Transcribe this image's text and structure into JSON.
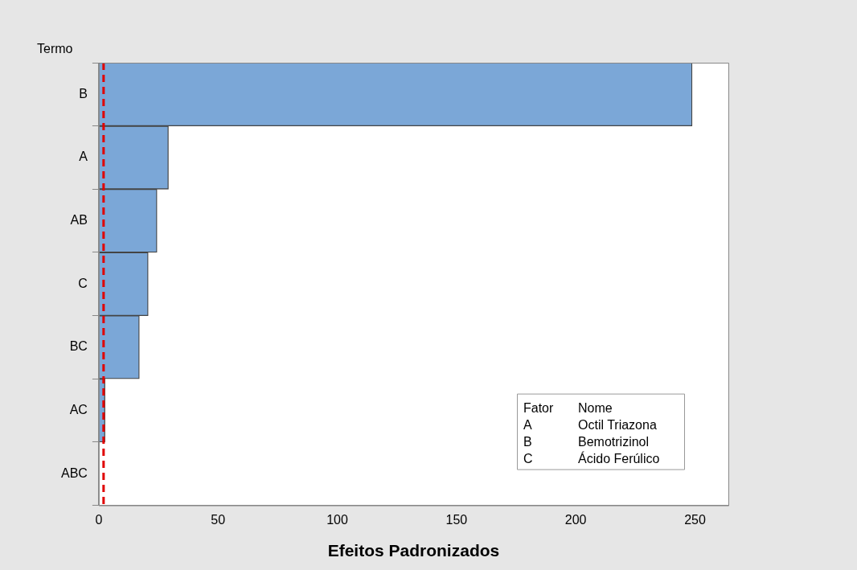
{
  "chart_data": {
    "type": "bar",
    "orientation": "horizontal",
    "xlabel": "Efeitos Padronizados",
    "ylabel": "Termo",
    "categories": [
      "B",
      "A",
      "AB",
      "C",
      "BC",
      "AC",
      "ABC"
    ],
    "values": [
      248.8,
      29.2,
      24.4,
      20.7,
      17.0,
      2.6,
      null
    ],
    "color": "#7ba7d7",
    "xlim": [
      0,
      264
    ],
    "xticks": [
      0,
      50,
      100,
      150,
      200,
      250
    ],
    "grid": false,
    "legend": false,
    "ref_lines": [
      {
        "axis": "x",
        "value": 2.0,
        "color": "#e00000",
        "line_style": "dashed"
      }
    ],
    "annotations": [
      "Fator",
      "Nome",
      "A",
      "Octil Triazona",
      "B",
      "Bemotrizinol",
      "C",
      "Ácido Ferúlico"
    ]
  }
}
